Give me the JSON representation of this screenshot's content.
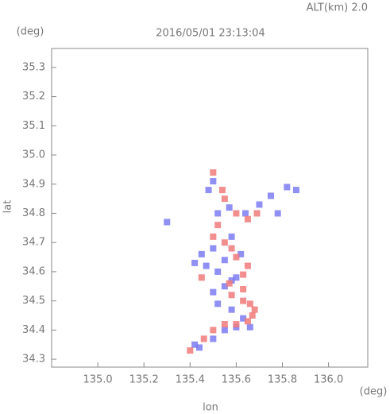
{
  "chart_data": {
    "type": "scatter",
    "title": "2016/05/01 23:13:04",
    "subtitle": "ALT(km) 2.0",
    "x_label": "lon",
    "y_label": "lat",
    "x_unit": "(deg)",
    "y_unit": "(deg)",
    "xlim": [
      134.8,
      136.17
    ],
    "ylim": [
      34.273,
      35.365
    ],
    "xticks": [
      {
        "value": 135,
        "label": "135.0"
      },
      135.2,
      135.4,
      135.6,
      135.8,
      {
        "value": 136,
        "label": "136.0"
      }
    ],
    "yticks": [
      34.3,
      34.4,
      34.5,
      34.6,
      34.7,
      34.8,
      34.9,
      {
        "value": 35,
        "label": "35.0"
      },
      35.1,
      35.2,
      35.3
    ],
    "series": [
      {
        "color": "#7b7bf2",
        "x": [
          135.42,
          135.44,
          135.5,
          135.55,
          135.6,
          135.63,
          135.58,
          135.52,
          135.5,
          135.55,
          135.58,
          135.6,
          135.52,
          135.47,
          135.55,
          135.62,
          135.5,
          135.45,
          135.58,
          135.52,
          135.57,
          135.64,
          135.7,
          135.75,
          135.82,
          135.86,
          135.78,
          135.5,
          135.48,
          135.3,
          135.66,
          135.42
        ],
        "y": [
          34.35,
          34.34,
          34.37,
          34.4,
          34.41,
          34.44,
          34.47,
          34.49,
          34.53,
          34.55,
          34.57,
          34.58,
          34.6,
          34.62,
          34.64,
          34.66,
          34.68,
          34.66,
          34.72,
          34.8,
          34.82,
          34.8,
          34.83,
          34.86,
          34.89,
          34.88,
          34.8,
          34.91,
          34.88,
          34.77,
          34.41,
          34.63
        ]
      },
      {
        "color": "#f07a7a",
        "x": [
          135.4,
          135.46,
          135.5,
          135.55,
          135.6,
          135.65,
          135.67,
          135.68,
          135.66,
          135.63,
          135.58,
          135.57,
          135.63,
          135.65,
          135.6,
          135.58,
          135.55,
          135.5,
          135.52,
          135.55,
          135.6,
          135.65,
          135.5,
          135.54,
          135.69,
          135.45,
          135.63
        ],
        "y": [
          34.33,
          34.37,
          34.4,
          34.42,
          34.42,
          34.43,
          34.45,
          34.47,
          34.49,
          34.5,
          34.52,
          34.56,
          34.59,
          34.62,
          34.65,
          34.68,
          34.7,
          34.72,
          34.76,
          34.85,
          34.8,
          34.78,
          34.94,
          34.88,
          34.8,
          34.58,
          34.54
        ]
      }
    ]
  }
}
